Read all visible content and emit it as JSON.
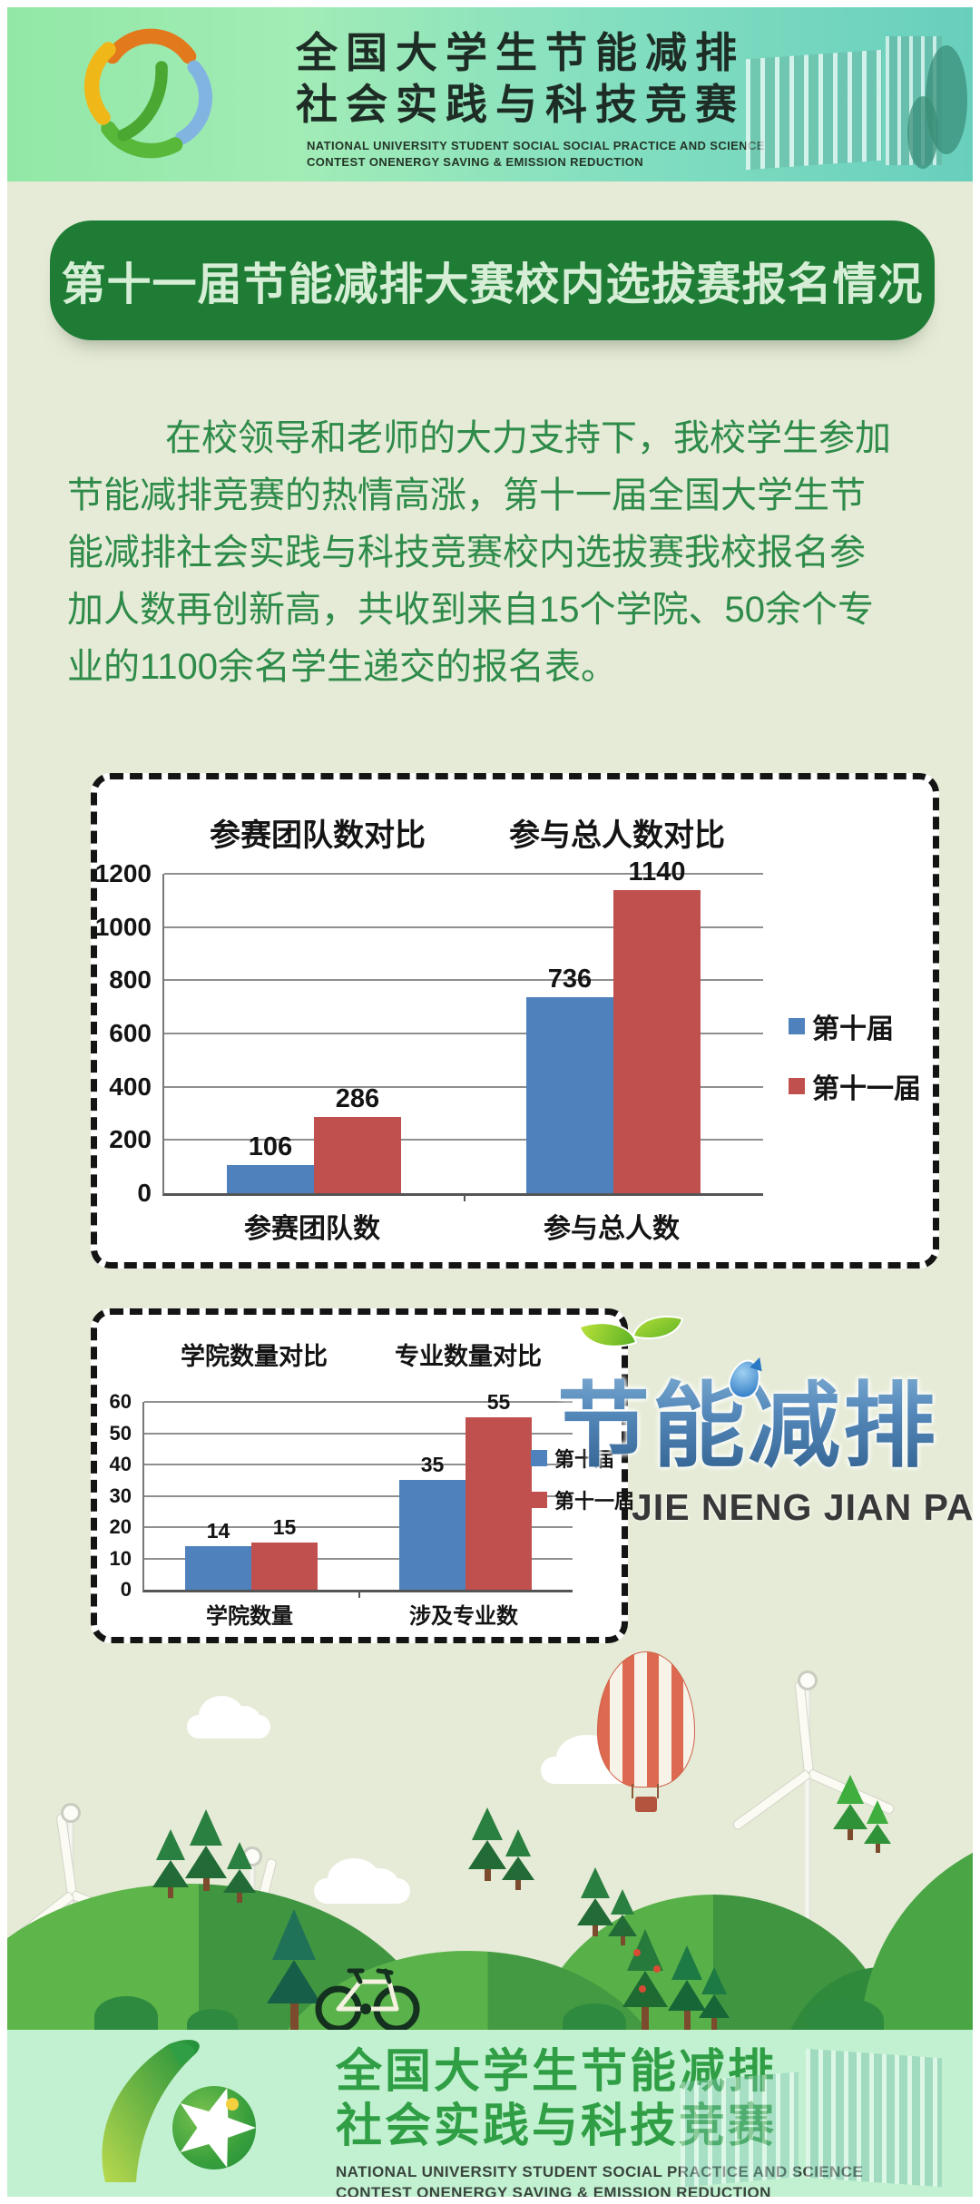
{
  "colors": {
    "body_bg": "#e5ebd6",
    "header_gradient_left": "#92e7a6",
    "header_gradient_right": "#68cfbd",
    "banner_bg": "#1e7c35",
    "banner_text": "#d6eed6",
    "intro_text": "#2e8b4a",
    "series_blue": "#4f81bd",
    "series_red": "#c0504d",
    "watermark_blue": "#4d82b2",
    "footer_bg": "#c2f1d1",
    "footer_title_green": "#2f9e44",
    "hill_green_light": "#5eb54a",
    "hill_green_dark": "#3f9540",
    "balloon_red": "#dd6a50"
  },
  "header": {
    "title_line1": "全国大学生节能减排",
    "title_line2": "社会实践与科技竞赛",
    "subtitle_line1": "NATIONAL UNIVERSITY STUDENT SOCIAL SOCIAL PRACTICE AND SCIENCE",
    "subtitle_line2": "CONTEST ONENERGY SAVING & EMISSION REDUCTION"
  },
  "banner": {
    "title": "第十一届节能减排大赛校内选拔赛报名情况"
  },
  "intro": {
    "lines": [
      "在校领导和老师的大力支持下，我校学生参加",
      "节能减排竞赛的热情高涨，第十一届全国大学生节",
      "能减排社会实践与科技竞赛校内选拔赛我校报名参",
      "加人数再创新高，共收到来自15个学院、50余个专",
      "业的1100余名学生递交的报名表。"
    ]
  },
  "chart_data": [
    {
      "type": "bar",
      "titles": [
        "参赛团队数对比",
        "参与总人数对比"
      ],
      "categories": [
        "参赛团队数",
        "参与总人数"
      ],
      "series": [
        {
          "name": "第十届",
          "color": "#4f81bd",
          "values": [
            106,
            736
          ]
        },
        {
          "name": "第十一届",
          "color": "#c0504d",
          "values": [
            286,
            1140
          ]
        }
      ],
      "ylim": [
        0,
        1200
      ],
      "ystep": 200,
      "grid": true,
      "legend_position": "right-outside"
    },
    {
      "type": "bar",
      "titles": [
        "学院数量对比",
        "专业数量对比"
      ],
      "categories": [
        "学院数量",
        "涉及专业数"
      ],
      "series": [
        {
          "name": "第十届",
          "color": "#4f81bd",
          "values": [
            14,
            35
          ]
        },
        {
          "name": "第十一届",
          "color": "#c0504d",
          "values": [
            15,
            55
          ]
        }
      ],
      "ylim": [
        0,
        60
      ],
      "ystep": 10,
      "grid": true,
      "legend_position": "right-inside"
    }
  ],
  "watermark": {
    "zh": "节能减排",
    "en": "JIE NENG JIAN PAI"
  },
  "footer": {
    "title_line1": "全国大学生节能减排",
    "title_line2": "社会实践与科技竞赛",
    "subtitle_line1": "NATIONAL UNIVERSITY STUDENT SOCIAL PRACTICE AND SCIENCE",
    "subtitle_line2": "CONTEST ONENERGY SAVING & EMISSION REDUCTION"
  }
}
